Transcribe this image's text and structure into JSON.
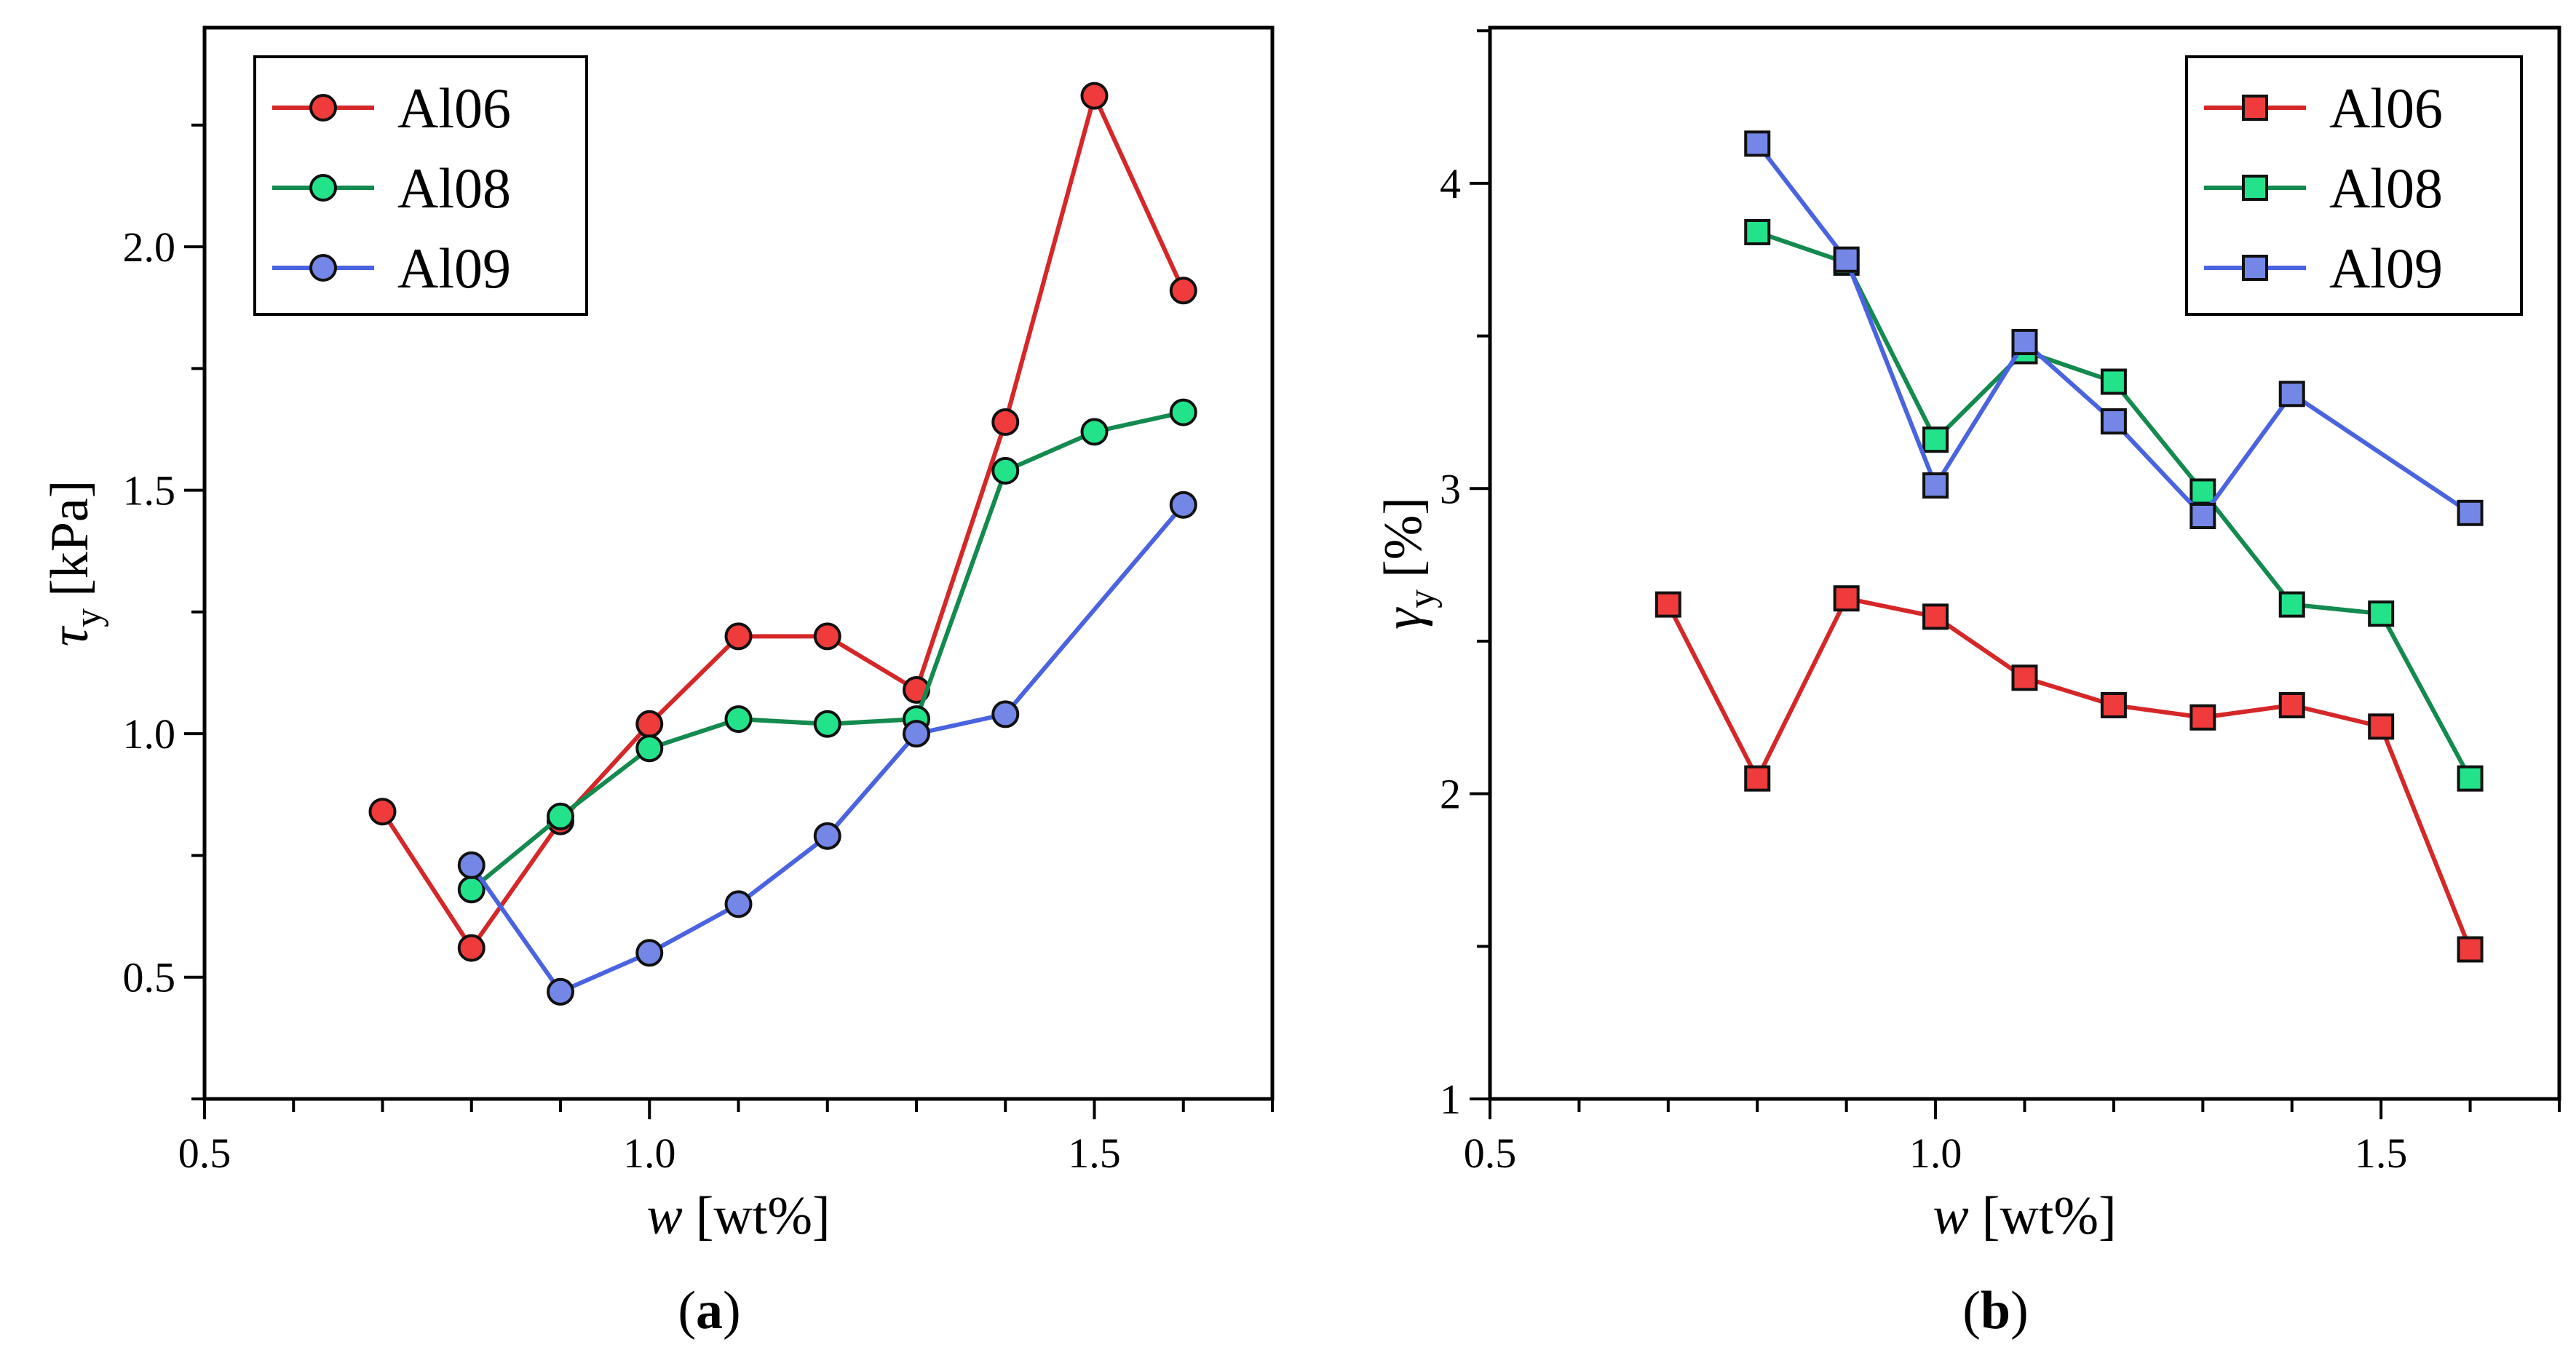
{
  "chart_data": [
    {
      "type": "line",
      "panel_label": "(a)",
      "panel_letter": "a",
      "xlabel": "w",
      "xlabel_unit": "[wt%]",
      "ylabel": "τ",
      "ylabel_sub": "y",
      "ylabel_unit": "[kPa]",
      "xlim": [
        0.5,
        1.7
      ],
      "ylim": [
        0.25,
        2.45
      ],
      "xticks": [
        "0.5",
        "1.0",
        "1.5"
      ],
      "yticks": [
        "0.5",
        "1.0",
        "1.5",
        "2.0"
      ],
      "marker": "circle",
      "legend_position": "top-left",
      "grid": false,
      "series": [
        {
          "name": "Al06",
          "color": "#d62728",
          "fill": "#ef3b3b",
          "x": [
            0.7,
            0.8,
            0.9,
            1.0,
            1.1,
            1.2,
            1.3,
            1.4,
            1.5,
            1.6
          ],
          "y": [
            0.84,
            0.56,
            0.82,
            1.02,
            1.2,
            1.2,
            1.09,
            1.64,
            2.31,
            1.91
          ]
        },
        {
          "name": "Al08",
          "color": "#138a4e",
          "fill": "#22e38a",
          "x": [
            0.8,
            0.9,
            1.0,
            1.1,
            1.2,
            1.3,
            1.4,
            1.5,
            1.6
          ],
          "y": [
            0.68,
            0.83,
            0.97,
            1.03,
            1.02,
            1.03,
            1.54,
            1.62,
            1.66
          ]
        },
        {
          "name": "Al09",
          "color": "#4a63e0",
          "fill": "#7487e6",
          "x": [
            0.8,
            0.9,
            1.0,
            1.1,
            1.2,
            1.3,
            1.4,
            1.6
          ],
          "y": [
            0.73,
            0.47,
            0.55,
            0.65,
            0.79,
            1.0,
            1.04,
            1.47
          ]
        }
      ]
    },
    {
      "type": "line",
      "panel_label": "(b)",
      "panel_letter": "b",
      "xlabel": "w",
      "xlabel_unit": "[wt%]",
      "ylabel": "γ",
      "ylabel_sub": "y",
      "ylabel_unit": "[%]",
      "xlim": [
        0.5,
        1.7
      ],
      "ylim": [
        1,
        4.51
      ],
      "xticks": [
        "0.5",
        "1.0",
        "1.5"
      ],
      "yticks": [
        "1",
        "2",
        "3",
        "4"
      ],
      "marker": "square",
      "legend_position": "top-right",
      "grid": false,
      "series": [
        {
          "name": "Al06",
          "color": "#d62728",
          "fill": "#ef3b3b",
          "x": [
            0.7,
            0.8,
            0.9,
            1.0,
            1.1,
            1.2,
            1.3,
            1.4,
            1.5,
            1.6
          ],
          "y": [
            2.62,
            2.05,
            2.64,
            2.58,
            2.38,
            2.29,
            2.25,
            2.29,
            2.22,
            1.49
          ]
        },
        {
          "name": "Al08",
          "color": "#138a4e",
          "fill": "#22e38a",
          "x": [
            0.8,
            0.9,
            1.0,
            1.1,
            1.2,
            1.3,
            1.4,
            1.5,
            1.6
          ],
          "y": [
            3.84,
            3.74,
            3.16,
            3.45,
            3.35,
            2.99,
            2.62,
            2.59,
            2.05
          ]
        },
        {
          "name": "Al09",
          "color": "#4a63e0",
          "fill": "#7487e6",
          "x": [
            0.8,
            0.9,
            1.0,
            1.1,
            1.2,
            1.3,
            1.4,
            1.6
          ],
          "y": [
            4.13,
            3.75,
            3.01,
            3.48,
            3.22,
            2.91,
            3.31,
            2.92
          ]
        }
      ]
    }
  ]
}
